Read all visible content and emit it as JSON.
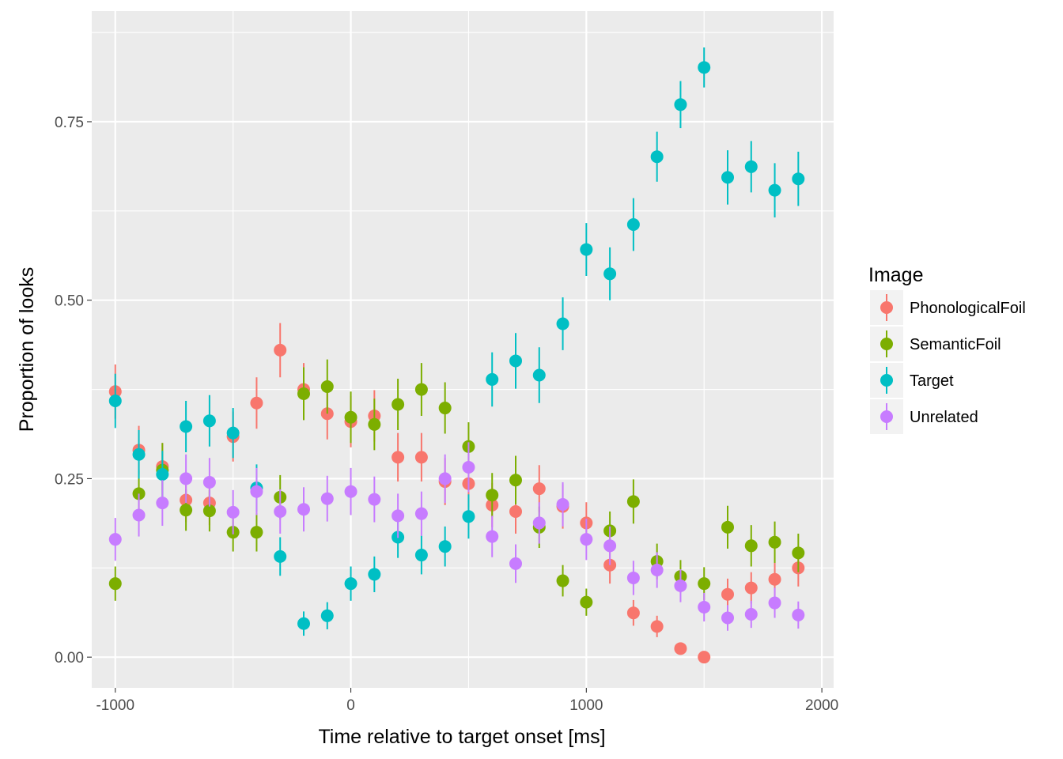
{
  "chart_data": {
    "type": "scatter",
    "title": "",
    "xlabel": "Time relative to target onset [ms]",
    "ylabel": "Proportion of looks",
    "xlim": [
      -1100,
      2050
    ],
    "ylim": [
      -0.043,
      0.905
    ],
    "x_ticks": [
      -1000,
      0,
      1000,
      2000
    ],
    "x_tick_labels": [
      "-1000",
      "0",
      "1000",
      "2000"
    ],
    "y_ticks": [
      0,
      0.25,
      0.5,
      0.75
    ],
    "y_tick_labels": [
      "0.00",
      "0.25",
      "0.50",
      "0.75"
    ],
    "grid": true,
    "error_bars": true,
    "legend": {
      "title": "Image",
      "position": "right"
    },
    "x": [
      -1000,
      -900,
      -800,
      -700,
      -600,
      -500,
      -400,
      -300,
      -200,
      -100,
      0,
      100,
      200,
      300,
      400,
      500,
      600,
      700,
      800,
      900,
      1000,
      1100,
      1200,
      1300,
      1400,
      1500,
      1600,
      1700,
      1800,
      1900
    ],
    "series": [
      {
        "name": "PhonologicalFoil",
        "color": "#F8766D",
        "values": [
          0.372,
          0.29,
          0.267,
          0.22,
          0.216,
          0.309,
          0.356,
          0.43,
          0.375,
          0.341,
          0.33,
          0.338,
          0.28,
          0.28,
          0.246,
          0.243,
          0.213,
          0.204,
          0.236,
          0.211,
          0.188,
          0.129,
          0.062,
          0.043,
          0.012,
          0.0,
          0.088,
          0.097,
          0.109,
          0.125
        ],
        "errors": [
          0.038,
          0.034,
          0.033,
          0.031,
          0.031,
          0.035,
          0.036,
          0.038,
          0.037,
          0.036,
          0.036,
          0.036,
          0.034,
          0.034,
          0.033,
          0.033,
          0.031,
          0.031,
          0.033,
          0.031,
          0.029,
          0.026,
          0.018,
          0.015,
          0.006,
          0.0,
          0.022,
          0.022,
          0.023,
          0.026
        ]
      },
      {
        "name": "SemanticFoil",
        "color": "#7CAE00",
        "values": [
          0.103,
          0.229,
          0.262,
          0.206,
          0.205,
          0.175,
          0.175,
          0.224,
          0.369,
          0.379,
          0.336,
          0.326,
          0.354,
          0.375,
          0.349,
          0.295,
          0.227,
          0.248,
          0.182,
          0.107,
          0.077,
          0.177,
          0.218,
          0.134,
          0.113,
          0.103,
          0.182,
          0.156,
          0.161,
          0.146
        ],
        "errors": [
          0.024,
          0.033,
          0.038,
          0.029,
          0.029,
          0.027,
          0.027,
          0.031,
          0.037,
          0.038,
          0.036,
          0.036,
          0.036,
          0.037,
          0.036,
          0.034,
          0.031,
          0.034,
          0.029,
          0.022,
          0.019,
          0.027,
          0.031,
          0.025,
          0.023,
          0.023,
          0.03,
          0.029,
          0.029,
          0.027
        ]
      },
      {
        "name": "Target",
        "color": "#00BFC4",
        "values": [
          0.359,
          0.284,
          0.256,
          0.323,
          0.331,
          0.314,
          0.237,
          0.141,
          0.047,
          0.058,
          0.103,
          0.116,
          0.168,
          0.143,
          0.155,
          0.197,
          0.389,
          0.415,
          0.395,
          0.467,
          0.571,
          0.537,
          0.606,
          0.701,
          0.774,
          0.826,
          0.672,
          0.687,
          0.654,
          0.67
        ],
        "errors": [
          0.038,
          0.034,
          0.033,
          0.036,
          0.036,
          0.035,
          0.033,
          0.027,
          0.017,
          0.019,
          0.024,
          0.025,
          0.029,
          0.027,
          0.028,
          0.031,
          0.038,
          0.039,
          0.039,
          0.037,
          0.037,
          0.037,
          0.037,
          0.035,
          0.033,
          0.028,
          0.038,
          0.036,
          0.038,
          0.038
        ]
      },
      {
        "name": "Unrelated",
        "color": "#C77CFF",
        "values": [
          0.165,
          0.199,
          0.216,
          0.25,
          0.245,
          0.203,
          0.232,
          0.204,
          0.207,
          0.222,
          0.232,
          0.221,
          0.198,
          0.201,
          0.25,
          0.266,
          0.169,
          0.131,
          0.188,
          0.214,
          0.165,
          0.156,
          0.111,
          0.122,
          0.1,
          0.07,
          0.055,
          0.06,
          0.076,
          0.059
        ],
        "errors": [
          0.03,
          0.03,
          0.032,
          0.034,
          0.034,
          0.031,
          0.033,
          0.031,
          0.031,
          0.032,
          0.033,
          0.032,
          0.031,
          0.031,
          0.034,
          0.035,
          0.029,
          0.027,
          0.029,
          0.031,
          0.029,
          0.027,
          0.024,
          0.025,
          0.023,
          0.02,
          0.018,
          0.019,
          0.021,
          0.019
        ]
      }
    ]
  }
}
